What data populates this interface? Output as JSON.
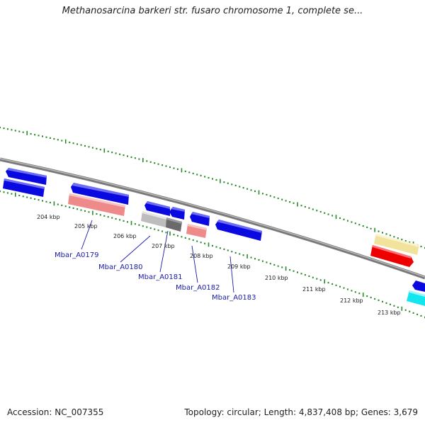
{
  "title": "Methanosarcina barkeri str. fusaro chromosome 1, complete se...",
  "footer": {
    "accession": "Accession: NC_007355",
    "summary": "Topology: circular; Length: 4,837,408 bp; Genes: 3,679"
  },
  "colors": {
    "tick": "#2a8a2a",
    "backbone": "#808080",
    "blue_gene": "#0a0ae0",
    "pink_gene": "#ee8a8a",
    "gray_gene": "#bdbdbd",
    "dark_gray_gene": "#6a6a6a",
    "yellow_gene": "#f1e29c",
    "red_gene": "#ee0000",
    "cyan_gene": "#14e6f0",
    "label": "#1a1aa6"
  },
  "scale_labels": [
    "204 kbp",
    "205 kbp",
    "206 kbp",
    "207 kbp",
    "208 kbp",
    "209 kbp",
    "210 kbp",
    "211 kbp",
    "212 kbp",
    "213 kbp"
  ],
  "gene_labels": [
    "Mbar_A0179",
    "Mbar_A0180",
    "Mbar_A0181",
    "Mbar_A0182",
    "Mbar_A0183"
  ]
}
